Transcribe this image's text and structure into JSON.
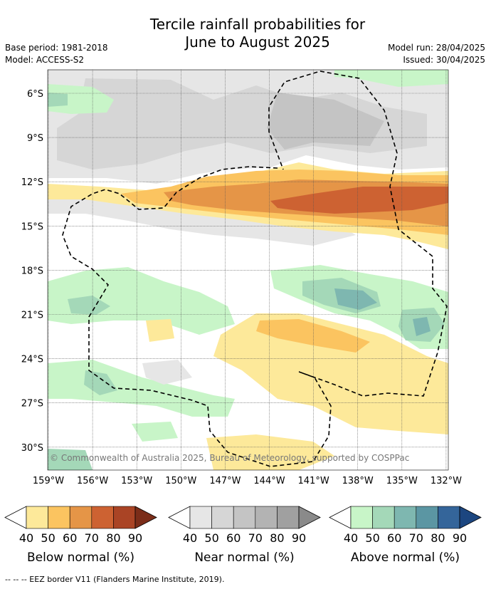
{
  "title": {
    "line1": "Tercile rainfall probabilities for",
    "line2": "June to August 2025"
  },
  "left_info": {
    "base_period": "Base period: 1981-2018",
    "model": "Model: ACCESS-S2"
  },
  "right_info": {
    "model_run": "Model run: 28/04/2025",
    "issued": "Issued: 30/04/2025"
  },
  "map": {
    "lat_labels": [
      "6°S",
      "9°S",
      "12°S",
      "15°S",
      "18°S",
      "21°S",
      "24°S",
      "27°S",
      "30°S"
    ],
    "lon_labels": [
      "159°W",
      "156°W",
      "153°W",
      "150°W",
      "147°W",
      "144°W",
      "141°W",
      "138°W",
      "135°W",
      "132°W"
    ],
    "copyright": "© Commonwealth of Australia 2025, Bureau of Meteorology, supported by COSPPac"
  },
  "legends": [
    {
      "name": "below",
      "title": "Below normal (%)",
      "ticks": [
        "40",
        "50",
        "60",
        "70",
        "80",
        "90"
      ],
      "colors": [
        "#fde99a",
        "#fbc460",
        "#e59547",
        "#cd6232",
        "#aa4425",
        "#7b2d19"
      ]
    },
    {
      "name": "near",
      "title": "Near normal (%)",
      "ticks": [
        "40",
        "50",
        "60",
        "70",
        "80",
        "90"
      ],
      "colors": [
        "#e6e6e6",
        "#d6d6d6",
        "#c4c4c4",
        "#b3b3b3",
        "#a0a0a0",
        "#8a8a8a"
      ]
    },
    {
      "name": "above",
      "title": "Above normal (%)",
      "ticks": [
        "40",
        "50",
        "60",
        "70",
        "80",
        "90"
      ],
      "colors": [
        "#c8f5c8",
        "#a4d8b8",
        "#7eb7b0",
        "#5b96a3",
        "#34659a",
        "#1c4680"
      ]
    }
  ],
  "footer": "--  --  -- EEZ border V11 (Flanders Marine Institute, 2019)."
}
